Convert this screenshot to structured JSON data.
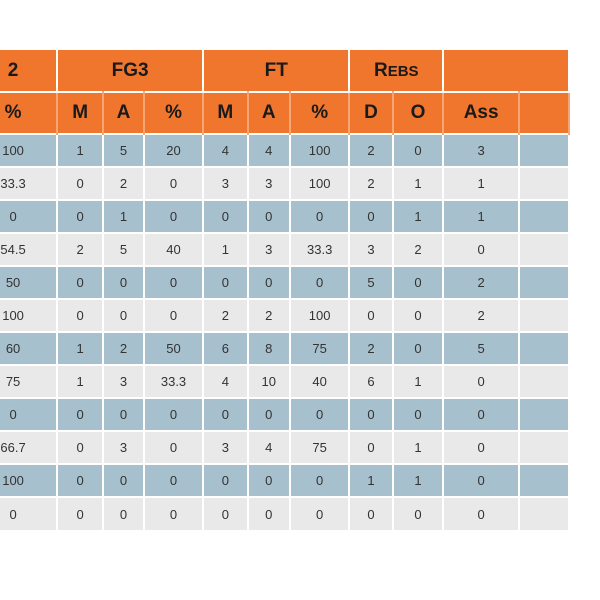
{
  "table": {
    "groups": [
      {
        "label": "2"
      },
      {
        "label": "FG3"
      },
      {
        "label": "FT"
      },
      {
        "label_big": "R",
        "label_small": "EBS"
      },
      {
        "label": ""
      }
    ],
    "subheaders": [
      "%",
      "M",
      "A",
      "%",
      "M",
      "A",
      "%",
      "D",
      "O",
      "Ass",
      ""
    ],
    "rows": [
      [
        "100",
        "1",
        "5",
        "20",
        "4",
        "4",
        "100",
        "2",
        "0",
        "3",
        ""
      ],
      [
        "33.3",
        "0",
        "2",
        "0",
        "3",
        "3",
        "100",
        "2",
        "1",
        "1",
        ""
      ],
      [
        "0",
        "0",
        "1",
        "0",
        "0",
        "0",
        "0",
        "0",
        "1",
        "1",
        ""
      ],
      [
        "54.5",
        "2",
        "5",
        "40",
        "1",
        "3",
        "33.3",
        "3",
        "2",
        "0",
        ""
      ],
      [
        "50",
        "0",
        "0",
        "0",
        "0",
        "0",
        "0",
        "5",
        "0",
        "2",
        ""
      ],
      [
        "100",
        "0",
        "0",
        "0",
        "2",
        "2",
        "100",
        "0",
        "0",
        "2",
        ""
      ],
      [
        "60",
        "1",
        "2",
        "50",
        "6",
        "8",
        "75",
        "2",
        "0",
        "5",
        ""
      ],
      [
        "75",
        "1",
        "3",
        "33.3",
        "4",
        "10",
        "40",
        "6",
        "1",
        "0",
        ""
      ],
      [
        "0",
        "0",
        "0",
        "0",
        "0",
        "0",
        "0",
        "0",
        "0",
        "0",
        ""
      ],
      [
        "66.7",
        "0",
        "3",
        "0",
        "3",
        "4",
        "75",
        "0",
        "1",
        "0",
        ""
      ],
      [
        "100",
        "0",
        "0",
        "0",
        "0",
        "0",
        "0",
        "1",
        "1",
        "0",
        ""
      ],
      [
        "0",
        "0",
        "0",
        "0",
        "0",
        "0",
        "0",
        "0",
        "0",
        "0",
        ""
      ]
    ]
  },
  "colors": {
    "header": "#f0762e",
    "row_odd": "#a7c0cd",
    "row_even": "#e9e9e9"
  }
}
